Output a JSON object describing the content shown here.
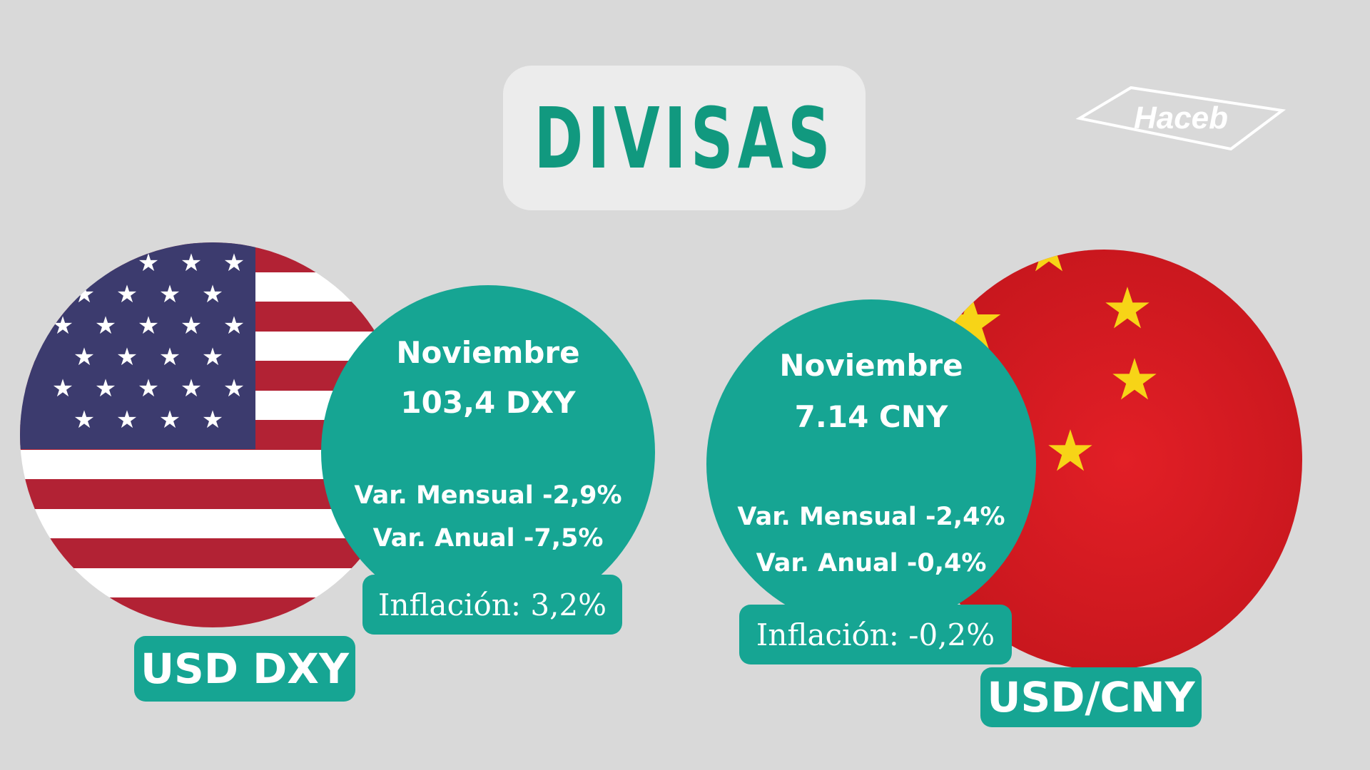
{
  "title": "DIVISAS",
  "logo": {
    "text": "Haceb",
    "icon": "haceb-logo-icon"
  },
  "colors": {
    "accent": "#16a593",
    "title": "#11997f",
    "background": "#d9d9d9"
  },
  "usd": {
    "month": "Noviembre",
    "value": "103,4 DXY",
    "monthly": "Var. Mensual -2,9%",
    "annual": "Var. Anual -7,5%",
    "inflation": "Inflación: 3,2%",
    "label": "USD DXY",
    "flag_icon": "usa-flag-icon"
  },
  "cny": {
    "month": "Noviembre",
    "value": "7.14 CNY",
    "monthly": "Var. Mensual -2,4%",
    "annual": "Var. Anual -0,4%",
    "inflation": "Inflación: -0,2%",
    "label": "USD/CNY",
    "flag_icon": "china-flag-icon"
  }
}
